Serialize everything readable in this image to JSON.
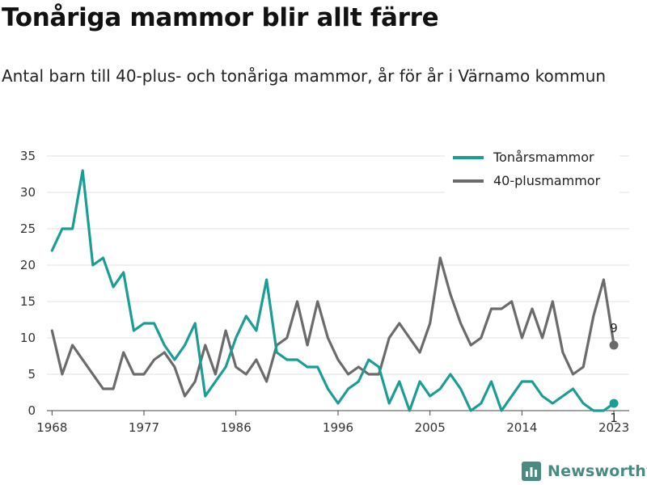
{
  "title": "Tonåriga mammor blir allt färre",
  "subtitle": "Antal barn till 40-plus- och tonåriga mammor, år för år i Värnamo kommun",
  "brand": {
    "name": "Newsworthy",
    "icon": "bar-chart-icon",
    "color": "#4a8a83"
  },
  "chart_data": {
    "type": "line",
    "title": "Tonåriga mammor blir allt färre",
    "x": [
      1968,
      1969,
      1970,
      1971,
      1972,
      1973,
      1974,
      1975,
      1976,
      1977,
      1978,
      1979,
      1980,
      1981,
      1982,
      1983,
      1984,
      1985,
      1986,
      1987,
      1988,
      1989,
      1990,
      1991,
      1992,
      1993,
      1994,
      1995,
      1996,
      1997,
      1998,
      1999,
      2000,
      2001,
      2002,
      2003,
      2004,
      2005,
      2006,
      2007,
      2008,
      2009,
      2010,
      2011,
      2012,
      2013,
      2014,
      2015,
      2016,
      2017,
      2018,
      2019,
      2020,
      2021,
      2022,
      2023
    ],
    "x_ticks": [
      1968,
      1977,
      1986,
      1996,
      2005,
      2014,
      2023
    ],
    "y_ticks": [
      0,
      5,
      10,
      15,
      20,
      25,
      30,
      35
    ],
    "ylim": [
      0,
      35
    ],
    "xlim": [
      1967.5,
      2024.5
    ],
    "grid": true,
    "legend_position": "top-right",
    "series": [
      {
        "name": "Tonårsmammor",
        "color": "#1a9e93",
        "values": [
          22,
          25,
          25,
          33,
          20,
          21,
          17,
          19,
          11,
          12,
          12,
          9,
          7,
          9,
          12,
          2,
          4,
          6,
          10,
          13,
          11,
          18,
          8,
          7,
          7,
          6,
          6,
          3,
          1,
          3,
          4,
          7,
          6,
          1,
          4,
          0,
          4,
          2,
          3,
          5,
          3,
          0,
          1,
          4,
          0,
          2,
          4,
          4,
          2,
          1,
          2,
          3,
          1,
          0,
          0,
          1
        ],
        "end_label": "1"
      },
      {
        "name": "40-plusmammor",
        "color": "#6b6b6b",
        "values": [
          11,
          5,
          9,
          7,
          5,
          3,
          3,
          8,
          5,
          5,
          7,
          8,
          6,
          2,
          4,
          9,
          5,
          11,
          6,
          5,
          7,
          4,
          9,
          10,
          15,
          9,
          15,
          10,
          7,
          5,
          6,
          5,
          5,
          10,
          12,
          10,
          8,
          12,
          21,
          16,
          12,
          9,
          10,
          14,
          14,
          15,
          10,
          14,
          10,
          15,
          8,
          5,
          6,
          13,
          18,
          9
        ],
        "end_label": "9"
      }
    ]
  }
}
